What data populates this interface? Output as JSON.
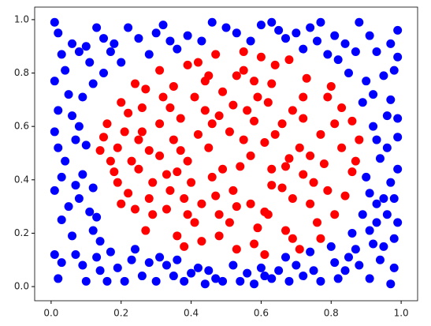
{
  "chart_data": {
    "type": "scatter",
    "xlim": [
      -0.047,
      1.047
    ],
    "ylim": [
      -0.053,
      1.047
    ],
    "xticks": [
      {
        "value": 0,
        "label": "0.0"
      },
      {
        "value": 0.2,
        "label": "0.2"
      },
      {
        "value": 0.4,
        "label": "0.4"
      },
      {
        "value": 0.6,
        "label": "0.6"
      },
      {
        "value": 0.8,
        "label": "0.8"
      },
      {
        "value": 1,
        "label": "1.0"
      }
    ],
    "yticks": [
      {
        "value": 0,
        "label": "0.0"
      },
      {
        "value": 0.2,
        "label": "0.2"
      },
      {
        "value": 0.4,
        "label": "0.4"
      },
      {
        "value": 0.6,
        "label": "0.6"
      },
      {
        "value": 0.8,
        "label": "0.8"
      },
      {
        "value": 1,
        "label": "1.0"
      }
    ],
    "grid": false,
    "series": [
      {
        "color": "red",
        "x": [
          0.45,
          0.32,
          0.61,
          0.72,
          0.25,
          0.55,
          0.38,
          0.67,
          0.21,
          0.48,
          0.83,
          0.58,
          0.29,
          0.74,
          0.42,
          0.63,
          0.17,
          0.52,
          0.35,
          0.79,
          0.44,
          0.26,
          0.69,
          0.57,
          0.33,
          0.86,
          0.49,
          0.22,
          0.64,
          0.41,
          0.76,
          0.31,
          0.53,
          0.68,
          0.19,
          0.46,
          0.81,
          0.37,
          0.59,
          0.27,
          0.71,
          0.43,
          0.62,
          0.24,
          0.51,
          0.84,
          0.36,
          0.66,
          0.28,
          0.55,
          0.73,
          0.39,
          0.61,
          0.16,
          0.47,
          0.78,
          0.34,
          0.57,
          0.23,
          0.69,
          0.44,
          0.88,
          0.31,
          0.63,
          0.19,
          0.52,
          0.75,
          0.38,
          0.58,
          0.26,
          0.81,
          0.48,
          0.35,
          0.67,
          0.42,
          0.14,
          0.61,
          0.29,
          0.72,
          0.54,
          0.39,
          0.77,
          0.22,
          0.47,
          0.64,
          0.33,
          0.86,
          0.41,
          0.58,
          0.18,
          0.69,
          0.46,
          0.27,
          0.79,
          0.53,
          0.37,
          0.62,
          0.24,
          0.74,
          0.49,
          0.31,
          0.66,
          0.43,
          0.83,
          0.56,
          0.2,
          0.71,
          0.4,
          0.59,
          0.25,
          0.87,
          0.51,
          0.34,
          0.68,
          0.45,
          0.15,
          0.63,
          0.36,
          0.77,
          0.55,
          0.28,
          0.72,
          0.48,
          0.2,
          0.6,
          0.39,
          0.8,
          0.53
        ],
        "y": [
          0.52,
          0.71,
          0.28,
          0.63,
          0.44,
          0.81,
          0.33,
          0.45,
          0.58,
          0.19,
          0.52,
          0.62,
          0.27,
          0.31,
          0.84,
          0.76,
          0.47,
          0.36,
          0.55,
          0.71,
          0.66,
          0.67,
          0.18,
          0.49,
          0.42,
          0.43,
          0.73,
          0.35,
          0.57,
          0.24,
          0.24,
          0.81,
          0.14,
          0.85,
          0.52,
          0.41,
          0.61,
          0.63,
          0.22,
          0.74,
          0.52,
          0.31,
          0.69,
          0.29,
          0.58,
          0.34,
          0.19,
          0.37,
          0.51,
          0.88,
          0.78,
          0.47,
          0.12,
          0.61,
          0.87,
          0.46,
          0.36,
          0.31,
          0.47,
          0.66,
          0.77,
          0.55,
          0.61,
          0.44,
          0.39,
          0.68,
          0.39,
          0.15,
          0.77,
          0.58,
          0.27,
          0.27,
          0.75,
          0.21,
          0.57,
          0.51,
          0.54,
          0.39,
          0.71,
          0.45,
          0.83,
          0.57,
          0.65,
          0.34,
          0.83,
          0.29,
          0.62,
          0.71,
          0.16,
          0.43,
          0.33,
          0.61,
          0.21,
          0.36,
          0.79,
          0.51,
          0.27,
          0.76,
          0.49,
          0.44,
          0.49,
          0.61,
          0.17,
          0.67,
          0.66,
          0.31,
          0.14,
          0.39,
          0.71,
          0.55,
          0.47,
          0.24,
          0.67,
          0.48,
          0.79,
          0.56,
          0.38,
          0.43,
          0.18,
          0.55,
          0.33,
          0.42,
          0.64,
          0.69,
          0.86,
          0.27,
          0.75,
          0.3
        ]
      },
      {
        "color": "blue",
        "x": [
          0.02,
          0.08,
          0.13,
          0.05,
          0.01,
          0.09,
          0.03,
          0.07,
          0.02,
          0.14,
          0.21,
          0.28,
          0.35,
          0.42,
          0.49,
          0.56,
          0.63,
          0.7,
          0.77,
          0.84,
          0.91,
          0.98,
          0.95,
          0.99,
          0.93,
          0.97,
          0.94,
          0.99,
          0.96,
          0.92,
          0.98,
          0.93,
          0.99,
          0.88,
          0.81,
          0.74,
          0.67,
          0.6,
          0.53,
          0.46,
          0.39,
          0.32,
          0.25,
          0.18,
          0.11,
          0.04,
          0.12,
          0.06,
          0.1,
          0.04,
          0.08,
          0.12,
          0.17,
          0.24,
          0.31,
          0.38,
          0.45,
          0.52,
          0.6,
          0.67,
          0.74,
          0.81,
          0.87,
          0.91,
          0.89,
          0.95,
          0.9,
          0.96,
          0.92,
          0.89,
          0.85,
          0.79,
          0.72,
          0.65,
          0.57,
          0.43,
          0.36,
          0.28,
          0.2,
          0.15,
          0.09,
          0.02,
          0.01,
          0.06,
          0.01,
          0.1,
          0.19,
          0.26,
          0.33,
          0.4,
          0.47,
          0.54,
          0.61,
          0.68,
          0.75,
          0.82,
          0.88,
          0.94,
          0.98,
          0.96,
          0.99,
          0.97,
          0.95,
          0.97,
          0.91,
          0.84,
          0.77,
          0.7,
          0.63,
          0.5,
          0.3,
          0.22,
          0.15,
          0.06,
          0.03,
          0.01,
          0.07,
          0.12,
          0.03,
          0.05,
          0.11,
          0.14,
          0.23,
          0.3,
          0.36,
          0.58,
          0.72,
          0.8,
          0.86,
          0.93,
          0.91,
          0.98,
          0.93,
          0.99,
          0.9,
          0.82,
          0.76,
          0.34,
          0.17,
          0.1,
          0.08,
          0.02,
          0.07,
          0.13,
          0.09,
          0.16,
          0.44,
          0.65,
          0.85,
          0.97,
          0.99,
          0.01,
          0.03,
          0.87,
          0.13,
          0.92
        ],
        "y": [
          0.95,
          0.88,
          0.97,
          0.72,
          0.58,
          0.42,
          0.25,
          0.12,
          0.03,
          0.06,
          0.02,
          0.09,
          0.04,
          0.07,
          0.02,
          0.05,
          0.03,
          0.08,
          0.02,
          0.06,
          0.03,
          0.07,
          0.15,
          0.24,
          0.31,
          0.39,
          0.48,
          0.56,
          0.64,
          0.72,
          0.81,
          0.88,
          0.96,
          0.99,
          0.94,
          0.97,
          0.93,
          0.98,
          0.95,
          0.99,
          0.94,
          0.98,
          0.93,
          0.91,
          0.84,
          0.81,
          0.76,
          0.64,
          0.53,
          0.47,
          0.33,
          0.21,
          0.13,
          0.14,
          0.11,
          0.02,
          0.06,
          0.08,
          0.07,
          0.11,
          0.13,
          0.09,
          0.14,
          0.21,
          0.27,
          0.33,
          0.41,
          0.52,
          0.6,
          0.69,
          0.8,
          0.87,
          0.89,
          0.96,
          0.92,
          0.92,
          0.89,
          0.87,
          0.84,
          0.8,
          0.71,
          0.66,
          0.36,
          0.19,
          0.12,
          0.02,
          0.07,
          0.04,
          0.08,
          0.05,
          0.03,
          0.02,
          0.04,
          0.02,
          0.06,
          0.03,
          0.08,
          0.1,
          0.18,
          0.27,
          0.44,
          0.7,
          0.79,
          0.91,
          0.94,
          0.91,
          0.99,
          0.95,
          0.99,
          0.97,
          0.95,
          0.97,
          0.93,
          0.91,
          0.87,
          0.77,
          0.55,
          0.37,
          0.41,
          0.3,
          0.28,
          0.17,
          0.1,
          0.02,
          0.1,
          0.01,
          0.04,
          0.15,
          0.2,
          0.24,
          0.35,
          0.33,
          0.55,
          0.63,
          0.77,
          0.85,
          0.92,
          0.92,
          0.88,
          0.9,
          0.6,
          0.52,
          0.38,
          0.26,
          0.08,
          0.02,
          0.01,
          0.06,
          0.11,
          0.01,
          0.86,
          0.99,
          0.09,
          0.88,
          0.11,
          0.16
        ]
      }
    ]
  }
}
